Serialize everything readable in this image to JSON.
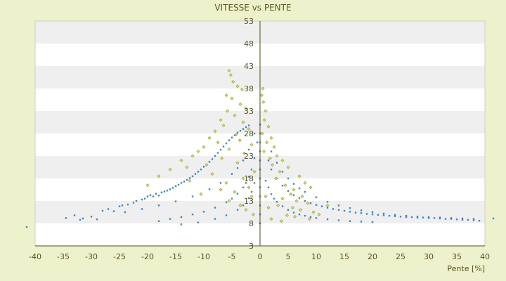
{
  "chart_data": {
    "type": "scatter",
    "title": "VITESSE vs PENTE",
    "xlabel": "Pente [%]",
    "ylabel": "",
    "xlim": [
      -40,
      40
    ],
    "ylim": [
      3,
      53
    ],
    "x_ticks": [
      -40,
      -35,
      -30,
      -25,
      -20,
      -15,
      -10,
      -5,
      0,
      5,
      10,
      15,
      20,
      25,
      30,
      35,
      40
    ],
    "y_ticks": [
      3,
      8,
      13,
      18,
      23,
      28,
      33,
      38,
      43,
      48,
      53
    ],
    "grid": "alternating horizontal bands",
    "legend": "none",
    "colors": {
      "page_background": "#eef2cc",
      "plot_band_light": "#ffffff",
      "plot_band_dark": "#efefef",
      "series_blue": "#3d87cc",
      "series_olive": "#a3a32b",
      "axis": "#4d4d1a",
      "text": "#55551a"
    },
    "series": [
      {
        "color": "#3d87cc",
        "marker": "dot",
        "description_points": "dense hyperbolic curves of speed vs slope",
        "points": [
          [
            -41.5,
            7.2
          ],
          [
            -34.5,
            9.2
          ],
          [
            -33.0,
            9.8
          ],
          [
            -32.0,
            8.8
          ],
          [
            -31.5,
            9.1
          ],
          [
            -30.0,
            9.5
          ],
          [
            -29.0,
            8.9
          ],
          [
            -28.0,
            10.8
          ],
          [
            -27.0,
            11.2
          ],
          [
            -26.0,
            10.7
          ],
          [
            -25.0,
            11.8
          ],
          [
            -24.5,
            12.0
          ],
          [
            -23.5,
            12.2
          ],
          [
            -22.5,
            12.6
          ],
          [
            -22.0,
            13.0
          ],
          [
            -21.0,
            13.3
          ],
          [
            -20.5,
            13.5
          ],
          [
            -20.0,
            14.0
          ],
          [
            -19.5,
            14.3
          ],
          [
            -19.0,
            14.0
          ],
          [
            -18.5,
            14.6
          ],
          [
            -18.0,
            14.2
          ],
          [
            -17.5,
            14.9
          ],
          [
            -17.0,
            15.1
          ],
          [
            -16.5,
            15.3
          ],
          [
            -16.0,
            15.6
          ],
          [
            -15.5,
            15.9
          ],
          [
            -15.0,
            16.3
          ],
          [
            -14.5,
            16.6
          ],
          [
            -14.0,
            17.0
          ],
          [
            -13.5,
            17.3
          ],
          [
            -13.0,
            17.7
          ],
          [
            -12.5,
            18.1
          ],
          [
            -12.0,
            18.5
          ],
          [
            -11.5,
            19.0
          ],
          [
            -11.0,
            19.5
          ],
          [
            -10.5,
            20.0
          ],
          [
            -10.0,
            20.6
          ],
          [
            -9.5,
            21.1
          ],
          [
            -9.0,
            21.7
          ],
          [
            -8.5,
            22.3
          ],
          [
            -8.0,
            23.0
          ],
          [
            -7.5,
            23.7
          ],
          [
            -7.0,
            24.4
          ],
          [
            -6.5,
            25.1
          ],
          [
            -6.0,
            25.8
          ],
          [
            -5.5,
            26.5
          ],
          [
            -5.0,
            27.1
          ],
          [
            -4.5,
            27.6
          ],
          [
            -4.0,
            28.2
          ],
          [
            -3.5,
            28.6
          ],
          [
            -3.0,
            29.0
          ],
          [
            -2.5,
            29.4
          ],
          [
            -2.0,
            29.8
          ],
          [
            -18.0,
            8.5
          ],
          [
            -16.0,
            9.0
          ],
          [
            -14.0,
            9.4
          ],
          [
            -12.0,
            10.0
          ],
          [
            -10.0,
            10.6
          ],
          [
            -8.0,
            11.5
          ],
          [
            -6.0,
            12.7
          ],
          [
            -5.0,
            13.5
          ],
          [
            -4.0,
            14.6
          ],
          [
            -3.0,
            16.0
          ],
          [
            -2.5,
            17.0
          ],
          [
            -2.0,
            18.4
          ],
          [
            -1.5,
            20.0
          ],
          [
            -1.0,
            22.5
          ],
          [
            -0.5,
            26.0
          ],
          [
            -24.0,
            10.5
          ],
          [
            -21.0,
            11.2
          ],
          [
            -18.0,
            12.0
          ],
          [
            -15.0,
            12.9
          ],
          [
            -12.0,
            14.0
          ],
          [
            -9.0,
            15.6
          ],
          [
            -7.0,
            17.0
          ],
          [
            -5.0,
            19.0
          ],
          [
            -4.0,
            20.3
          ],
          [
            -3.0,
            22.0
          ],
          [
            -2.0,
            24.4
          ],
          [
            -1.0,
            28.0
          ],
          [
            -14.0,
            7.8
          ],
          [
            -11.0,
            8.2
          ],
          [
            -8.0,
            9.0
          ],
          [
            -6.0,
            9.8
          ],
          [
            -4.0,
            11.0
          ],
          [
            -3.0,
            12.0
          ],
          [
            -2.0,
            13.6
          ],
          [
            -1.5,
            15.0
          ],
          [
            -1.0,
            17.0
          ],
          [
            0.0,
            8.0
          ],
          [
            0.0,
            10.0
          ],
          [
            0.0,
            12.0
          ],
          [
            0.0,
            14.0
          ],
          [
            0.0,
            16.0
          ],
          [
            0.0,
            18.0
          ],
          [
            0.0,
            20.0
          ],
          [
            0.0,
            22.0
          ],
          [
            0.0,
            24.0
          ],
          [
            0.0,
            26.0
          ],
          [
            0.0,
            28.0
          ],
          [
            0.0,
            30.0
          ],
          [
            1.0,
            17.5
          ],
          [
            1.5,
            16.0
          ],
          [
            2.0,
            14.5
          ],
          [
            2.5,
            13.5
          ],
          [
            3.0,
            12.8
          ],
          [
            4.0,
            11.8
          ],
          [
            5.0,
            11.0
          ],
          [
            6.0,
            10.4
          ],
          [
            7.0,
            10.0
          ],
          [
            8.0,
            9.7
          ],
          [
            9.0,
            9.4
          ],
          [
            10.0,
            9.2
          ],
          [
            12.0,
            8.9
          ],
          [
            14.0,
            8.7
          ],
          [
            16.0,
            8.5
          ],
          [
            18.0,
            8.4
          ],
          [
            20.0,
            8.3
          ],
          [
            1.5,
            22.0
          ],
          [
            2.0,
            20.0
          ],
          [
            3.0,
            18.0
          ],
          [
            4.0,
            16.4
          ],
          [
            5.0,
            15.2
          ],
          [
            6.0,
            14.3
          ],
          [
            7.0,
            13.6
          ],
          [
            8.0,
            13.0
          ],
          [
            9.0,
            12.5
          ],
          [
            10.0,
            12.1
          ],
          [
            11.0,
            11.8
          ],
          [
            12.0,
            11.5
          ],
          [
            13.0,
            11.2
          ],
          [
            14.0,
            11.0
          ],
          [
            15.0,
            10.8
          ],
          [
            16.0,
            10.6
          ],
          [
            17.0,
            10.4
          ],
          [
            18.0,
            10.3
          ],
          [
            19.0,
            10.1
          ],
          [
            20.0,
            10.0
          ],
          [
            21.0,
            9.9
          ],
          [
            22.0,
            9.8
          ],
          [
            23.0,
            9.7
          ],
          [
            24.0,
            9.6
          ],
          [
            25.0,
            9.5
          ],
          [
            26.0,
            9.4
          ],
          [
            27.0,
            9.4
          ],
          [
            28.0,
            9.3
          ],
          [
            29.0,
            9.3
          ],
          [
            30.0,
            9.2
          ],
          [
            31.0,
            9.2
          ],
          [
            32.0,
            9.1
          ],
          [
            33.0,
            9.0
          ],
          [
            34.0,
            9.0
          ],
          [
            35.0,
            8.9
          ],
          [
            36.0,
            8.8
          ],
          [
            37.0,
            8.8
          ],
          [
            38.0,
            8.7
          ],
          [
            39.0,
            8.6
          ],
          [
            41.5,
            9.1
          ],
          [
            2.0,
            24.0
          ],
          [
            3.0,
            21.5
          ],
          [
            4.0,
            19.5
          ],
          [
            5.0,
            18.0
          ],
          [
            6.0,
            16.8
          ],
          [
            7.0,
            15.8
          ],
          [
            8.0,
            15.0
          ],
          [
            10.0,
            13.8
          ],
          [
            12.0,
            12.8
          ],
          [
            14.0,
            12.0
          ],
          [
            16.0,
            11.4
          ],
          [
            18.0,
            10.9
          ],
          [
            20.0,
            10.5
          ],
          [
            22.0,
            10.2
          ],
          [
            24.0,
            9.9
          ],
          [
            26.0,
            9.7
          ],
          [
            28.0,
            9.5
          ],
          [
            30.0,
            9.4
          ],
          [
            32.0,
            9.3
          ],
          [
            34.0,
            9.2
          ],
          [
            36.0,
            9.1
          ],
          [
            38.0,
            9.0
          ]
        ]
      },
      {
        "color": "#a3a32b",
        "marker": "diamond",
        "points": [
          [
            -5.5,
            42.0
          ],
          [
            -5.2,
            41.0
          ],
          [
            -4.8,
            39.5
          ],
          [
            -4.0,
            38.5
          ],
          [
            -3.2,
            37.8
          ],
          [
            -6.0,
            36.5
          ],
          [
            -5.0,
            35.8
          ],
          [
            -3.5,
            34.5
          ],
          [
            -2.5,
            33.6
          ],
          [
            -5.8,
            33.0
          ],
          [
            -4.5,
            32.0
          ],
          [
            -7.0,
            31.0
          ],
          [
            -3.0,
            30.5
          ],
          [
            -6.5,
            29.8
          ],
          [
            -2.0,
            29.0
          ],
          [
            -8.0,
            28.5
          ],
          [
            -4.2,
            27.8
          ],
          [
            -9.0,
            27.0
          ],
          [
            -3.6,
            26.5
          ],
          [
            -7.5,
            26.0
          ],
          [
            -1.5,
            25.5
          ],
          [
            -10.0,
            25.0
          ],
          [
            -5.5,
            24.5
          ],
          [
            -11.0,
            24.0
          ],
          [
            -2.8,
            23.6
          ],
          [
            -12.0,
            23.0
          ],
          [
            -6.8,
            22.5
          ],
          [
            -14.0,
            22.0
          ],
          [
            -4.0,
            21.5
          ],
          [
            -9.5,
            21.0
          ],
          [
            -13.0,
            20.5
          ],
          [
            -16.0,
            20.0
          ],
          [
            -1.0,
            19.5
          ],
          [
            -8.5,
            19.0
          ],
          [
            -18.0,
            18.5
          ],
          [
            -3.0,
            18.0
          ],
          [
            -12.5,
            17.5
          ],
          [
            -6.0,
            17.0
          ],
          [
            -20.0,
            16.5
          ],
          [
            -2.0,
            16.0
          ],
          [
            -7.0,
            15.5
          ],
          [
            -4.5,
            15.0
          ],
          [
            -10.5,
            14.5
          ],
          [
            -1.5,
            14.0
          ],
          [
            -5.5,
            13.0
          ],
          [
            -3.5,
            12.0
          ],
          [
            -2.5,
            11.0
          ],
          [
            -1.2,
            10.0
          ],
          [
            0.5,
            38.0
          ],
          [
            0.3,
            36.5
          ],
          [
            0.6,
            35.0
          ],
          [
            1.0,
            33.0
          ],
          [
            0.8,
            31.0
          ],
          [
            1.5,
            29.5
          ],
          [
            0.4,
            28.0
          ],
          [
            2.0,
            27.0
          ],
          [
            1.2,
            26.0
          ],
          [
            2.5,
            25.0
          ],
          [
            0.7,
            24.0
          ],
          [
            3.0,
            23.0
          ],
          [
            1.8,
            22.5
          ],
          [
            4.0,
            22.0
          ],
          [
            2.2,
            21.0
          ],
          [
            5.0,
            20.5
          ],
          [
            3.5,
            19.5
          ],
          [
            7.0,
            18.5
          ],
          [
            2.8,
            18.0
          ],
          [
            8.0,
            17.0
          ],
          [
            4.5,
            16.5
          ],
          [
            9.0,
            16.0
          ],
          [
            6.0,
            15.5
          ],
          [
            5.5,
            14.5
          ],
          [
            7.5,
            14.0
          ],
          [
            4.0,
            13.5
          ],
          [
            6.5,
            13.0
          ],
          [
            8.5,
            12.5
          ],
          [
            3.2,
            12.0
          ],
          [
            5.8,
            11.5
          ],
          [
            7.2,
            11.0
          ],
          [
            9.5,
            10.5
          ],
          [
            10.5,
            10.0
          ],
          [
            4.8,
            9.8
          ],
          [
            6.2,
            9.5
          ],
          [
            8.8,
            9.0
          ],
          [
            3.8,
            8.5
          ],
          [
            12.0,
            12.0
          ],
          [
            2.0,
            9.0
          ],
          [
            1.5,
            11.5
          ],
          [
            1.0,
            14.0
          ]
        ]
      }
    ]
  }
}
